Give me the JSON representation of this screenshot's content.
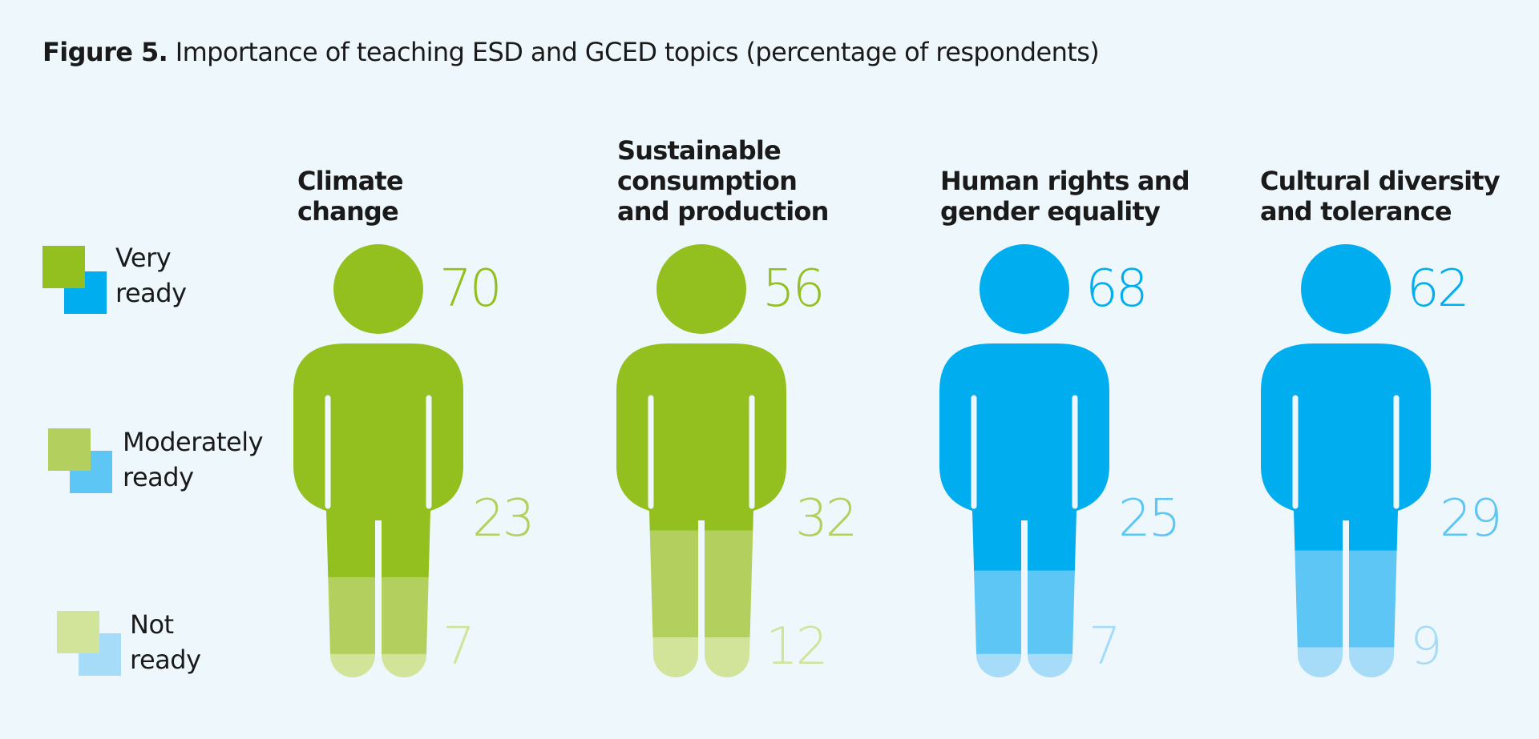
{
  "title": {
    "figure_label": "Figure 5.",
    "text": "Importance of teaching ESD and GCED topics (percentage of respondents)"
  },
  "legend": [
    {
      "line1": "Very",
      "line2": "ready"
    },
    {
      "line1": "Moderately",
      "line2": "ready"
    },
    {
      "line1": "Not",
      "line2": "ready"
    }
  ],
  "colors": {
    "green": [
      "#93c01f",
      "#b3d05e",
      "#d2e39a"
    ],
    "blue": [
      "#00aeef",
      "#5ec6f4",
      "#a6dcf7"
    ]
  },
  "chart_data": {
    "type": "pictogram",
    "title": "Figure 5. Importance of teaching ESD and GCED topics (percentage of respondents)",
    "unit": "percentage of respondents",
    "series_names": [
      "Very ready",
      "Moderately ready",
      "Not ready"
    ],
    "categories": [
      {
        "line1": "Climate",
        "line2": "change",
        "palette": "green",
        "values": [
          70,
          23,
          7
        ],
        "labels": [
          "70",
          "23",
          "7"
        ]
      },
      {
        "line1": "Sustainable",
        "line2": "consumption",
        "line3": "and production",
        "palette": "green",
        "values": [
          56,
          32,
          12
        ],
        "labels": [
          "56",
          "32",
          "12"
        ]
      },
      {
        "line1": "Human rights and",
        "line2": "gender equality",
        "palette": "blue",
        "values": [
          68,
          25,
          7
        ],
        "labels": [
          "68",
          "25",
          "7"
        ]
      },
      {
        "line1": "Cultural diversity",
        "line2": "and tolerance",
        "palette": "blue",
        "values": [
          62,
          29,
          9
        ],
        "labels": [
          "62",
          "29",
          "9"
        ]
      }
    ]
  }
}
